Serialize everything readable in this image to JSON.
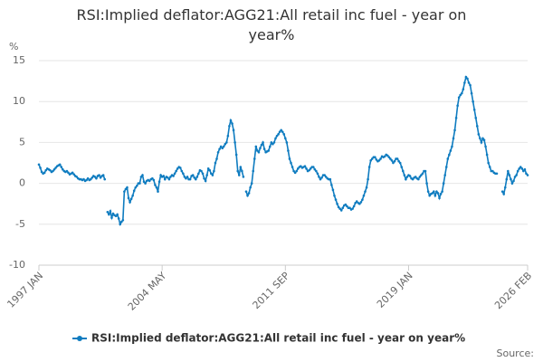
{
  "chart_data": {
    "type": "line",
    "title": "RSI:Implied deflator:AGG21:All retail inc fuel - year on year%",
    "ylabel": "%",
    "source": "Source:",
    "ylim": [
      -10,
      15
    ],
    "yticks": [
      -10,
      -5,
      0,
      5,
      10,
      15
    ],
    "grid": true,
    "categories": [
      "1997 JAN",
      null,
      null,
      null,
      null,
      null,
      null,
      null,
      null,
      null,
      null,
      null,
      null,
      null,
      null,
      null,
      null,
      null,
      null,
      null,
      null,
      null,
      null,
      null,
      null,
      null,
      null,
      null,
      null,
      null,
      null,
      null,
      null,
      null,
      null,
      null,
      null,
      null,
      null,
      null,
      null,
      null,
      null,
      null,
      null,
      null,
      null,
      null,
      null,
      null,
      null,
      null,
      null,
      null,
      null,
      null,
      null,
      null,
      null,
      null,
      null,
      null,
      null,
      null,
      null,
      null,
      null,
      null,
      null,
      null,
      null,
      null,
      null,
      null,
      null,
      null,
      null,
      null,
      null,
      null,
      null,
      null,
      null,
      null,
      null,
      null,
      null,
      null,
      "2004 MAY",
      null,
      null,
      null,
      null,
      null,
      null,
      null,
      null,
      null,
      null,
      null,
      null,
      null,
      null,
      null,
      null,
      null,
      null,
      null,
      null,
      null,
      null,
      null,
      null,
      null,
      null,
      null,
      null,
      null,
      null,
      null,
      null,
      null,
      null,
      null,
      null,
      null,
      null,
      null,
      null,
      null,
      null,
      null,
      null,
      null,
      null,
      null,
      null,
      null,
      null,
      null,
      null,
      null,
      null,
      null,
      null,
      null,
      null,
      null,
      null,
      null,
      null,
      null,
      null,
      null,
      null,
      null,
      null,
      null,
      null,
      null,
      null,
      null,
      null,
      null,
      null,
      null,
      null,
      null,
      null,
      null,
      null,
      null,
      null,
      null,
      null,
      null,
      "2011 SEP",
      null,
      null,
      null,
      null,
      null,
      null,
      null,
      null,
      null,
      null,
      null,
      null,
      null,
      null,
      null,
      null,
      null,
      null,
      null,
      null,
      null,
      null,
      null,
      null,
      null,
      null,
      null,
      null,
      null,
      null,
      null,
      null,
      null,
      null,
      null,
      null,
      null,
      null,
      null,
      null,
      null,
      null,
      null,
      null,
      null,
      null,
      null,
      null,
      null,
      null,
      null,
      null,
      null,
      null,
      null,
      null,
      null,
      null,
      null,
      null,
      null,
      null,
      null,
      null,
      null,
      null,
      null,
      null,
      null,
      null,
      null,
      null,
      null,
      null,
      null,
      null,
      null,
      null,
      null,
      null,
      null,
      null,
      null,
      null,
      null,
      null,
      null,
      "2019 JAN",
      null,
      null,
      null,
      null,
      null,
      null,
      null,
      null,
      null,
      null,
      null,
      null,
      null,
      null,
      null,
      null,
      null,
      null,
      null,
      null,
      null,
      null,
      null,
      null,
      null,
      null,
      null,
      null,
      null,
      null,
      null,
      null,
      null,
      null,
      null,
      null,
      null,
      null,
      null,
      null,
      null,
      null,
      null,
      null,
      null,
      null,
      null,
      null,
      null,
      null,
      null,
      null,
      null,
      null,
      null,
      null,
      null,
      null,
      null,
      null,
      null,
      null,
      null,
      null,
      null,
      null,
      null,
      null,
      null,
      null,
      null,
      null,
      null,
      null,
      null,
      null,
      null,
      null,
      null,
      null,
      null,
      null,
      null,
      null,
      "2026 FEB"
    ],
    "series": [
      {
        "name": "RSI:Implied deflator:AGG21:All retail inc fuel - year on year%",
        "color": "#0f7cc0",
        "values": [
          2.3,
          1.9,
          1.4,
          1.2,
          1.3,
          1.6,
          1.8,
          1.7,
          1.6,
          1.4,
          1.5,
          1.7,
          1.9,
          2.1,
          2.2,
          2.3,
          2.0,
          1.7,
          1.5,
          1.4,
          1.5,
          1.3,
          1.1,
          1.2,
          1.3,
          1.1,
          0.9,
          0.8,
          0.6,
          0.5,
          0.5,
          0.4,
          0.5,
          0.3,
          0.4,
          0.6,
          0.4,
          0.5,
          0.7,
          0.9,
          0.8,
          0.6,
          0.9,
          1.0,
          0.7,
          0.9,
          1.0,
          0.5,
          null,
          -3.5,
          -3.8,
          -3.4,
          -4.2,
          -3.7,
          -3.9,
          -4.0,
          -3.8,
          -4.3,
          -5.0,
          -4.7,
          -4.5,
          -1.0,
          -0.7,
          -0.5,
          -1.8,
          -2.3,
          -1.9,
          -1.5,
          -0.9,
          -0.5,
          -0.3,
          0.0,
          0.0,
          0.8,
          1.0,
          0.2,
          0.0,
          0.3,
          0.4,
          0.3,
          0.5,
          0.6,
          0.4,
          -0.2,
          -0.5,
          -1.0,
          0.2,
          1.0,
          0.8,
          0.9,
          0.5,
          0.8,
          0.7,
          0.5,
          0.8,
          1.0,
          0.9,
          1.2,
          1.5,
          1.8,
          2.0,
          1.9,
          1.5,
          1.2,
          0.8,
          0.6,
          0.8,
          0.5,
          0.5,
          0.9,
          1.0,
          0.7,
          0.5,
          0.8,
          1.2,
          1.6,
          1.5,
          1.2,
          0.6,
          0.3,
          1.0,
          1.8,
          1.6,
          1.2,
          1.0,
          1.5,
          2.5,
          3.0,
          3.8,
          4.2,
          4.5,
          4.3,
          4.5,
          4.8,
          5.0,
          5.8,
          7.0,
          7.7,
          7.3,
          6.5,
          5.0,
          3.5,
          1.5,
          1.0,
          2.0,
          1.5,
          0.8,
          null,
          -1.0,
          -1.5,
          -1.2,
          -0.5,
          0.0,
          1.5,
          3.0,
          4.5,
          4.0,
          3.8,
          4.3,
          4.7,
          5.0,
          4.2,
          3.8,
          3.9,
          4.0,
          4.5,
          5.0,
          4.8,
          5.0,
          5.5,
          5.8,
          6.0,
          6.3,
          6.5,
          6.3,
          6.0,
          5.5,
          5.0,
          4.0,
          3.0,
          2.5,
          2.0,
          1.5,
          1.3,
          1.5,
          1.8,
          2.0,
          2.1,
          1.9,
          2.0,
          2.1,
          1.8,
          1.5,
          1.6,
          1.8,
          2.0,
          2.0,
          1.7,
          1.5,
          1.2,
          0.8,
          0.5,
          0.7,
          1.0,
          1.0,
          0.8,
          0.6,
          0.5,
          0.5,
          -0.2,
          -0.8,
          -1.5,
          -2.0,
          -2.5,
          -2.9,
          -3.1,
          -3.3,
          -3.0,
          -2.7,
          -2.6,
          -2.8,
          -3.0,
          -3.0,
          -3.2,
          -3.1,
          -2.8,
          -2.4,
          -2.2,
          -2.4,
          -2.5,
          -2.3,
          -2.0,
          -1.5,
          -1.0,
          -0.5,
          0.5,
          2.0,
          2.8,
          3.0,
          3.2,
          3.2,
          2.9,
          2.7,
          2.8,
          3.0,
          3.3,
          3.2,
          3.3,
          3.5,
          3.4,
          3.2,
          3.0,
          2.8,
          2.5,
          2.7,
          3.0,
          3.0,
          2.7,
          2.5,
          2.0,
          1.5,
          1.0,
          0.5,
          0.8,
          1.0,
          0.9,
          0.6,
          0.5,
          0.7,
          0.8,
          0.6,
          0.5,
          0.8,
          1.0,
          1.2,
          1.5,
          1.5,
          0.0,
          -1.0,
          -1.5,
          -1.3,
          -1.2,
          -1.0,
          -1.5,
          -1.0,
          -1.2,
          -1.8,
          -1.3,
          -1.0,
          0.0,
          1.0,
          2.0,
          3.0,
          3.5,
          4.0,
          4.5,
          5.5,
          6.5,
          8.0,
          9.5,
          10.5,
          10.8,
          11.0,
          11.5,
          12.3,
          13.0,
          12.8,
          12.3,
          12.0,
          11.0,
          10.0,
          9.0,
          8.0,
          7.0,
          6.0,
          5.5,
          5.0,
          5.5,
          5.3,
          4.5,
          3.5,
          2.5,
          2.0,
          1.5,
          1.5,
          1.3,
          1.2,
          1.2,
          null,
          null,
          null,
          -1.0,
          -1.3,
          -0.5,
          0.5,
          1.5,
          1.0,
          0.5,
          0.0,
          0.3,
          0.8,
          1.0,
          1.5,
          1.8,
          2.0,
          1.8,
          1.5,
          1.7,
          1.2,
          1.0
        ]
      }
    ]
  }
}
